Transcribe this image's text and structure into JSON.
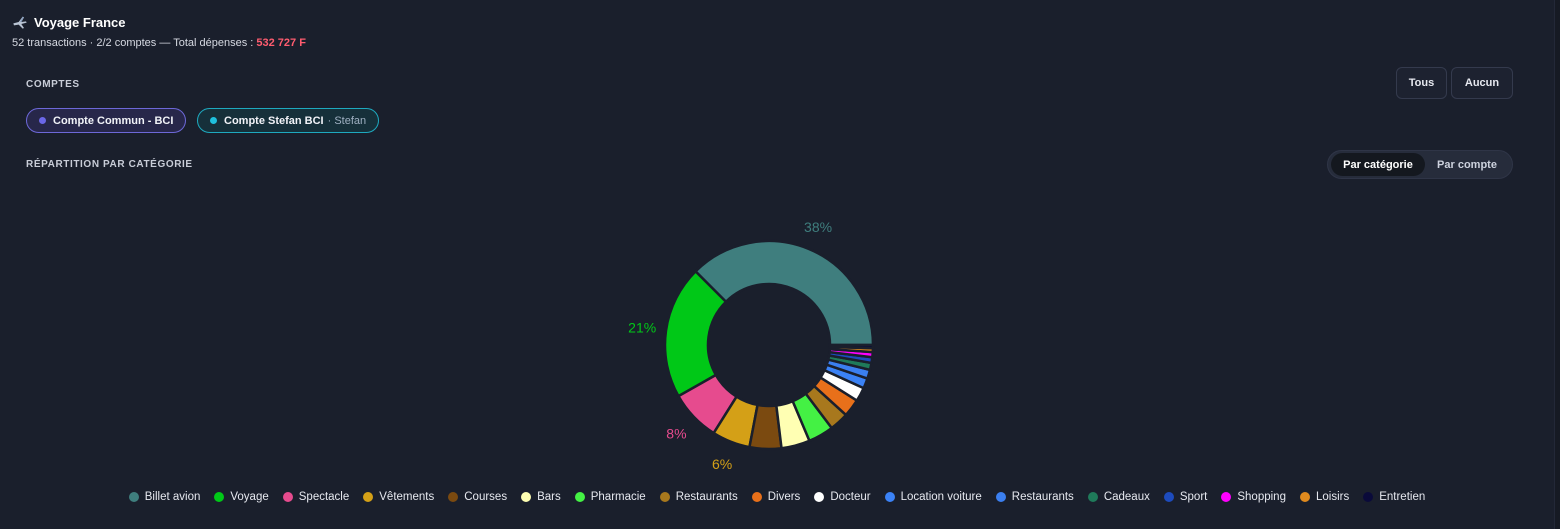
{
  "header": {
    "title": "Voyage France",
    "summary": "52 transactions · 2/2 comptes — Total dépenses :",
    "total": "532 727 F",
    "icon": "airplane-icon"
  },
  "accounts": {
    "label": "COMPTES",
    "all_label": "Tous",
    "none_label": "Aucun",
    "items": [
      {
        "name": "Compte Commun - BCI",
        "owner": "",
        "color": "#6b67e8"
      },
      {
        "name": "Compte Stefan BCI",
        "owner": "· Stefan",
        "color": "#1fc0dd"
      }
    ]
  },
  "breakdown": {
    "label": "RÉPARTITION PAR CATÉGORIE",
    "by_category": "Par catégorie",
    "by_account": "Par compte"
  },
  "chart_data": {
    "type": "pie",
    "variant": "donut",
    "title": "",
    "categories": [
      "Billet avion",
      "Voyage",
      "Spectacle",
      "Vêtements",
      "Courses",
      "Bars",
      "Pharmacie",
      "Restaurants",
      "Divers",
      "Docteur",
      "Location voiture",
      "Restaurants",
      "Cadeaux",
      "Sport",
      "Shopping",
      "Loisirs",
      "Entretien"
    ],
    "values": [
      38,
      21,
      8,
      6,
      5,
      4.5,
      4,
      3,
      2.8,
      2.2,
      1.6,
      1.4,
      1.1,
      0.9,
      0.8,
      0.6,
      0.5
    ],
    "colors": [
      "#3f7e7e",
      "#00c817",
      "#e64b8e",
      "#d4a017",
      "#7b4a10",
      "#ffffb3",
      "#44f144",
      "#a8781d",
      "#e8701a",
      "#ffffff",
      "#3b82f6",
      "#3b7ff0",
      "#1f7a5a",
      "#1d4bbd",
      "#ff00ff",
      "#e08a1e",
      "#0a0a3a"
    ],
    "labels_shown": [
      {
        "text": "38%",
        "color": "#3f7e7e"
      },
      {
        "text": "21%",
        "color": "#00c817"
      },
      {
        "text": "8%",
        "color": "#e64b8e"
      },
      {
        "text": "6%",
        "color": "#d4a017"
      }
    ],
    "legend_position": "bottom"
  }
}
